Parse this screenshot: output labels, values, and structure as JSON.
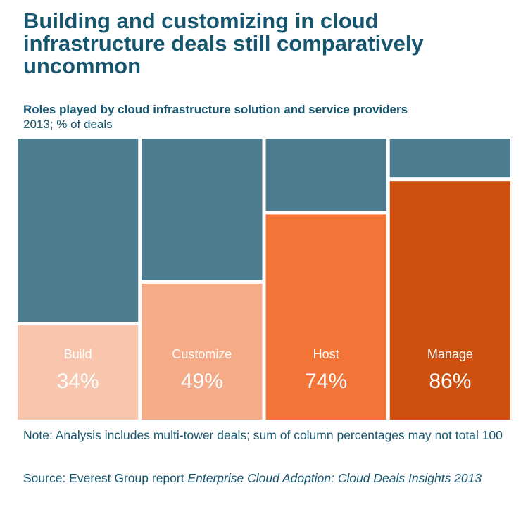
{
  "title": "Building and customizing in cloud infrastructure deals still comparatively uncommon",
  "subtitle": "Roles played by cloud infrastructure solution and service providers",
  "subtitle2": "2013; % of deals",
  "note": "Note: Analysis includes multi-tower deals; sum of column percentages may not total 100",
  "source_prefix": "Source: Everest Group report ",
  "source_title": "Enterprise Cloud Adoption: Cloud Deals Insights 2013",
  "chart_data": {
    "type": "bar",
    "stacked_to": 100,
    "categories": [
      "Build",
      "Customize",
      "Host",
      "Manage"
    ],
    "values": [
      34,
      49,
      74,
      86
    ],
    "value_labels": [
      "34%",
      "49%",
      "74%",
      "86%"
    ],
    "ylim": [
      0,
      100
    ],
    "colors": [
      "#f8c6ad",
      "#f5ab87",
      "#f27537",
      "#cf4f0e"
    ],
    "remainder_color": "#4d7b8f",
    "grid": false
  }
}
